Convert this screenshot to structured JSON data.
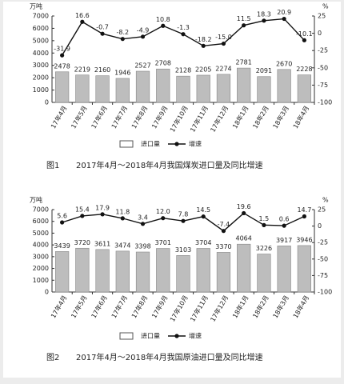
{
  "chart_data": [
    {
      "type": "bar_line",
      "figure_label": "图1",
      "title": "2017年4月～2018年4月我国煤炭进口量及同比增速",
      "y_label": "万吨",
      "y2_label": "%",
      "categories": [
        "17年4月",
        "17年5月",
        "17年6月",
        "17年7月",
        "17年8月",
        "17年9月",
        "17年10月",
        "17年11月",
        "17年12月",
        "18年1月",
        "18年2月",
        "18年3月",
        "18年4月"
      ],
      "series": [
        {
          "name": "进口量",
          "type": "bar",
          "color": "#bdbdbd",
          "values": [
            2478,
            2219,
            2160,
            1946,
            2527,
            2708,
            2128,
            2205,
            2274,
            2781,
            2091,
            2670,
            2228
          ]
        },
        {
          "name": "增速",
          "type": "line",
          "axis": "y2",
          "color": "#111111",
          "values": [
            -31.9,
            16.6,
            -0.7,
            -8.2,
            -4.9,
            10.8,
            -1.3,
            -18.2,
            -15.0,
            11.5,
            18.3,
            20.9,
            -10.1
          ],
          "value_labels": [
            "-31.9",
            "16.6",
            "-0.7",
            "-8.2",
            "-4.9",
            "10.8",
            "-1.3",
            "-18.2",
            "-15.0",
            "11.5",
            "18.3",
            "20.9",
            "-10.1"
          ]
        }
      ],
      "ylim": [
        0,
        7000
      ],
      "yticks": [
        0,
        1000,
        2000,
        3000,
        4000,
        5000,
        6000,
        7000
      ],
      "y2lim": [
        -100,
        25
      ],
      "y2ticks": [
        25,
        0,
        -25,
        -50,
        -75,
        -100
      ]
    },
    {
      "type": "bar_line",
      "figure_label": "图2",
      "title": "2017年4月～2018年4月我国原油进口量及同比增速",
      "y_label": "万吨",
      "y2_label": "%",
      "categories": [
        "17年4月",
        "17年5月",
        "17年6月",
        "17年7月",
        "17年8月",
        "17年9月",
        "17年10月",
        "17年11月",
        "17年12月",
        "18年1月",
        "18年2月",
        "18年3月",
        "18年4月"
      ],
      "series": [
        {
          "name": "进口量",
          "type": "bar",
          "color": "#bdbdbd",
          "values": [
            3439,
            3720,
            3611,
            3474,
            3398,
            3701,
            3103,
            3704,
            3370,
            4064,
            3226,
            3917,
            3946
          ]
        },
        {
          "name": "增速",
          "type": "line",
          "axis": "y2",
          "color": "#111111",
          "values": [
            5.6,
            15.4,
            17.9,
            11.8,
            3.4,
            12.0,
            7.8,
            14.5,
            -7.4,
            19.6,
            1.5,
            0.6,
            14.7
          ],
          "value_labels": [
            "5.6",
            "15.4",
            "17.9",
            "11.8",
            "3.4",
            "12.0",
            "7.8",
            "14.5",
            "-7.4",
            "19.6",
            "1.5",
            "0.6",
            "14.7"
          ]
        }
      ],
      "ylim": [
        0,
        7000
      ],
      "yticks": [
        0,
        1000,
        2000,
        3000,
        4000,
        5000,
        6000,
        7000
      ],
      "y2lim": [
        -100,
        25
      ],
      "y2ticks": [
        25,
        0,
        -25,
        -50,
        -75,
        -100
      ]
    }
  ]
}
